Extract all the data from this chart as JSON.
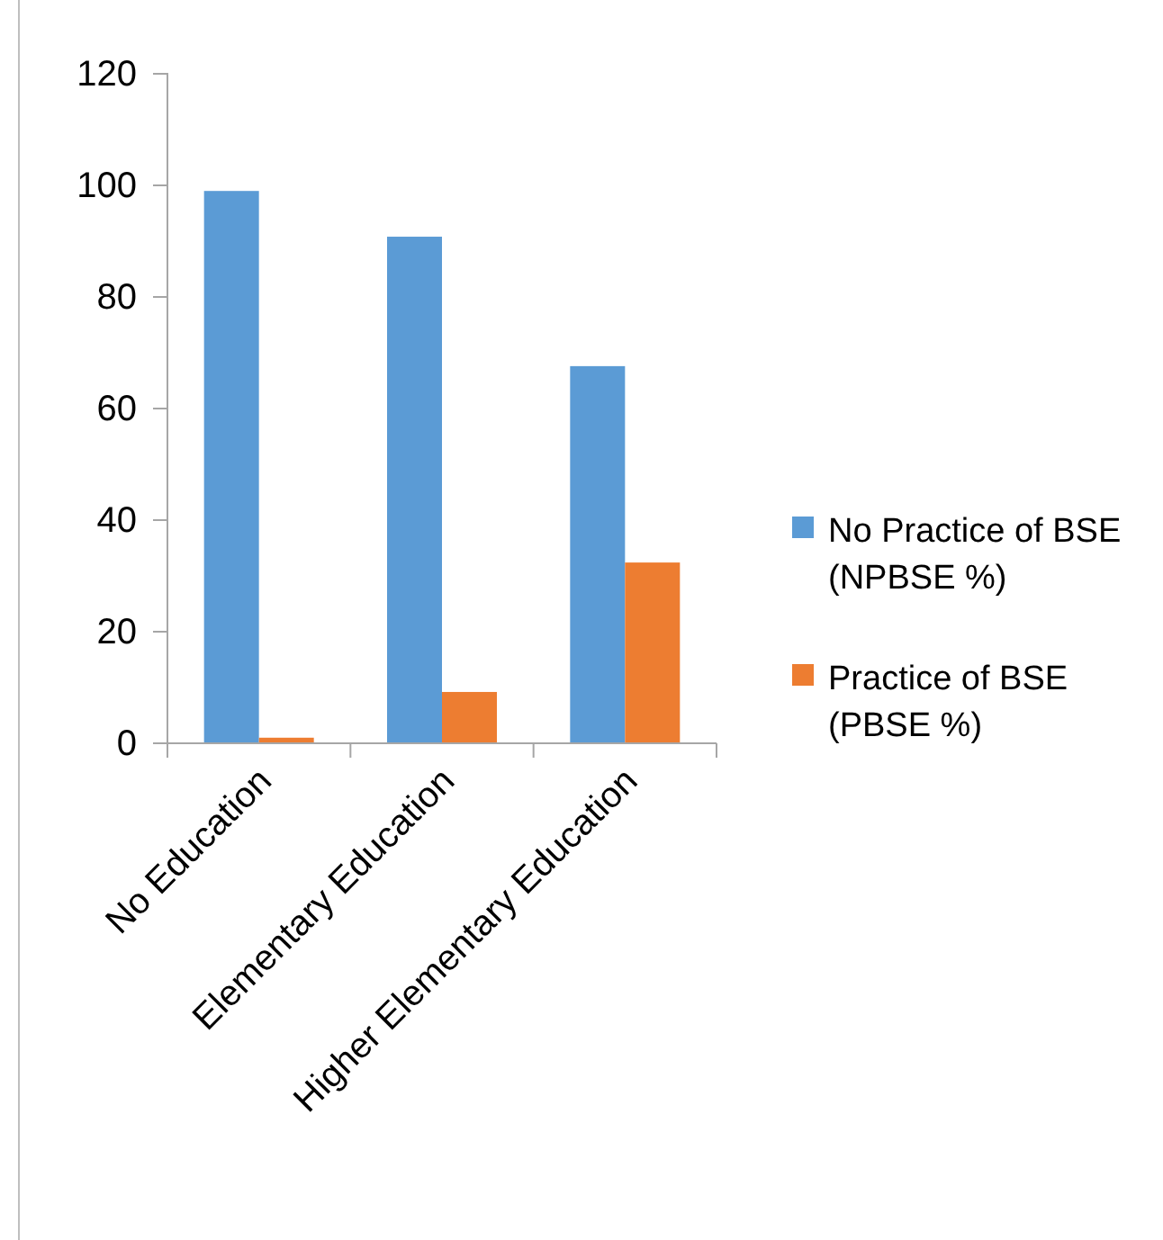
{
  "chart_data": {
    "type": "bar",
    "categories": [
      "No Education",
      "Elementary Education",
      "Higher Elementary Education"
    ],
    "series": [
      {
        "name": "No Practice of BSE (NPBSE %)",
        "color": "#5b9bd5",
        "values": [
          99,
          90.8,
          67.6
        ]
      },
      {
        "name": "Practice of BSE (PBSE %)",
        "color": "#ed7d31",
        "values": [
          1,
          9.2,
          32.4
        ]
      }
    ],
    "ylim": [
      0,
      120
    ],
    "yticks": [
      0,
      20,
      40,
      60,
      80,
      100,
      120
    ],
    "grid": false,
    "legend": "right"
  }
}
